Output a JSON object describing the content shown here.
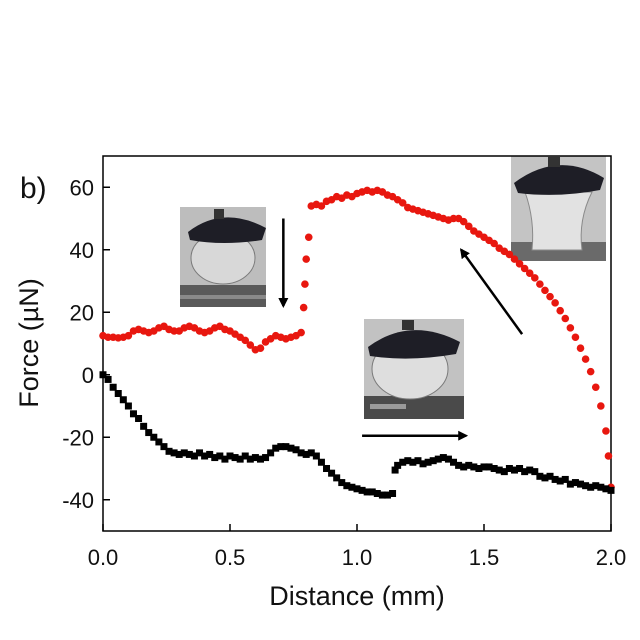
{
  "chart_data": {
    "type": "scatter",
    "panel_label": "b)",
    "xlabel": "Distance (mm)",
    "ylabel": "Force (µN)",
    "xlim": [
      0.0,
      2.0
    ],
    "ylim": [
      -50,
      70
    ],
    "x_ticks": [
      0.0,
      0.5,
      1.0,
      1.5,
      2.0
    ],
    "x_tick_labels": [
      "0.0",
      "0.5",
      "1.0",
      "1.5",
      "2.0"
    ],
    "y_ticks": [
      -40,
      -20,
      0,
      20,
      40,
      60
    ],
    "y_tick_labels": [
      "-40",
      "-20",
      "0",
      "20",
      "40",
      "60"
    ],
    "grid": false,
    "legend": "none",
    "series": [
      {
        "color": "#e8170f",
        "marker": "circle",
        "points": [
          [
            0.0,
            12.5
          ],
          [
            0.02,
            12.0
          ],
          [
            0.04,
            12.0
          ],
          [
            0.06,
            11.8
          ],
          [
            0.08,
            12.0
          ],
          [
            0.1,
            12.5
          ],
          [
            0.12,
            14.0
          ],
          [
            0.14,
            14.5
          ],
          [
            0.16,
            14.0
          ],
          [
            0.18,
            13.5
          ],
          [
            0.2,
            14.0
          ],
          [
            0.22,
            15.0
          ],
          [
            0.24,
            15.5
          ],
          [
            0.26,
            14.5
          ],
          [
            0.28,
            14.0
          ],
          [
            0.3,
            14.0
          ],
          [
            0.32,
            15.0
          ],
          [
            0.34,
            15.5
          ],
          [
            0.36,
            15.0
          ],
          [
            0.38,
            14.0
          ],
          [
            0.4,
            13.5
          ],
          [
            0.42,
            14.0
          ],
          [
            0.44,
            15.0
          ],
          [
            0.46,
            15.5
          ],
          [
            0.48,
            14.5
          ],
          [
            0.5,
            14.0
          ],
          [
            0.52,
            13.0
          ],
          [
            0.54,
            12.0
          ],
          [
            0.56,
            11.0
          ],
          [
            0.58,
            9.5
          ],
          [
            0.6,
            8.0
          ],
          [
            0.62,
            8.5
          ],
          [
            0.64,
            10.5
          ],
          [
            0.66,
            11.5
          ],
          [
            0.68,
            12.5
          ],
          [
            0.7,
            12.0
          ],
          [
            0.72,
            11.5
          ],
          [
            0.74,
            12.0
          ],
          [
            0.76,
            12.5
          ],
          [
            0.78,
            13.5
          ],
          [
            0.79,
            21.5
          ],
          [
            0.795,
            29.0
          ],
          [
            0.8,
            37.0
          ],
          [
            0.81,
            44.0
          ],
          [
            0.82,
            54.0
          ],
          [
            0.84,
            54.5
          ],
          [
            0.86,
            54.0
          ],
          [
            0.88,
            55.5
          ],
          [
            0.9,
            56.0
          ],
          [
            0.92,
            57.0
          ],
          [
            0.94,
            56.5
          ],
          [
            0.96,
            57.5
          ],
          [
            0.98,
            57.0
          ],
          [
            1.0,
            58.0
          ],
          [
            1.02,
            58.5
          ],
          [
            1.04,
            59.0
          ],
          [
            1.06,
            58.5
          ],
          [
            1.08,
            59.0
          ],
          [
            1.1,
            58.5
          ],
          [
            1.12,
            57.5
          ],
          [
            1.14,
            57.0
          ],
          [
            1.16,
            56.0
          ],
          [
            1.18,
            55.0
          ],
          [
            1.2,
            53.5
          ],
          [
            1.22,
            53.0
          ],
          [
            1.24,
            52.5
          ],
          [
            1.26,
            52.0
          ],
          [
            1.28,
            51.5
          ],
          [
            1.3,
            51.0
          ],
          [
            1.32,
            50.5
          ],
          [
            1.34,
            50.0
          ],
          [
            1.36,
            49.5
          ],
          [
            1.38,
            50.0
          ],
          [
            1.4,
            50.0
          ],
          [
            1.42,
            49.0
          ],
          [
            1.44,
            47.5
          ],
          [
            1.46,
            46.0
          ],
          [
            1.48,
            45.0
          ],
          [
            1.5,
            44.0
          ],
          [
            1.52,
            43.0
          ],
          [
            1.54,
            42.0
          ],
          [
            1.56,
            40.5
          ],
          [
            1.58,
            39.5
          ],
          [
            1.6,
            38.5
          ],
          [
            1.62,
            37.0
          ],
          [
            1.64,
            35.5
          ],
          [
            1.66,
            34.0
          ],
          [
            1.68,
            32.5
          ],
          [
            1.7,
            31.0
          ],
          [
            1.72,
            29.0
          ],
          [
            1.74,
            27.0
          ],
          [
            1.76,
            25.0
          ],
          [
            1.78,
            23.0
          ],
          [
            1.8,
            20.5
          ],
          [
            1.82,
            18.0
          ],
          [
            1.84,
            15.0
          ],
          [
            1.86,
            12.0
          ],
          [
            1.88,
            8.5
          ],
          [
            1.9,
            5.0
          ],
          [
            1.92,
            1.0
          ],
          [
            1.94,
            -4.0
          ],
          [
            1.96,
            -10.0
          ],
          [
            1.98,
            -18.0
          ],
          [
            1.99,
            -26.0
          ],
          [
            2.0,
            -36.0
          ]
        ]
      },
      {
        "color": "#000000",
        "marker": "square",
        "points": [
          [
            0.0,
            0.0
          ],
          [
            0.02,
            -1.5
          ],
          [
            0.04,
            -4.0
          ],
          [
            0.06,
            -6.0
          ],
          [
            0.08,
            -8.0
          ],
          [
            0.1,
            -10.0
          ],
          [
            0.12,
            -12.5
          ],
          [
            0.14,
            -14.0
          ],
          [
            0.16,
            -16.5
          ],
          [
            0.18,
            -18.5
          ],
          [
            0.2,
            -20.0
          ],
          [
            0.22,
            -21.5
          ],
          [
            0.24,
            -23.0
          ],
          [
            0.26,
            -24.5
          ],
          [
            0.28,
            -25.0
          ],
          [
            0.3,
            -25.5
          ],
          [
            0.32,
            -25.0
          ],
          [
            0.34,
            -25.5
          ],
          [
            0.36,
            -26.0
          ],
          [
            0.38,
            -25.0
          ],
          [
            0.4,
            -26.0
          ],
          [
            0.42,
            -25.5
          ],
          [
            0.44,
            -26.5
          ],
          [
            0.46,
            -26.0
          ],
          [
            0.48,
            -27.0
          ],
          [
            0.5,
            -26.0
          ],
          [
            0.52,
            -26.5
          ],
          [
            0.54,
            -27.0
          ],
          [
            0.56,
            -26.0
          ],
          [
            0.58,
            -27.0
          ],
          [
            0.6,
            -26.5
          ],
          [
            0.62,
            -27.0
          ],
          [
            0.64,
            -26.5
          ],
          [
            0.66,
            -25.0
          ],
          [
            0.68,
            -23.5
          ],
          [
            0.7,
            -23.0
          ],
          [
            0.72,
            -23.0
          ],
          [
            0.74,
            -23.5
          ],
          [
            0.76,
            -24.0
          ],
          [
            0.78,
            -25.0
          ],
          [
            0.8,
            -25.5
          ],
          [
            0.82,
            -25.0
          ],
          [
            0.84,
            -26.0
          ],
          [
            0.86,
            -28.0
          ],
          [
            0.88,
            -30.0
          ],
          [
            0.9,
            -31.5
          ],
          [
            0.92,
            -33.0
          ],
          [
            0.94,
            -34.5
          ],
          [
            0.96,
            -35.5
          ],
          [
            0.98,
            -36.0
          ],
          [
            1.0,
            -36.5
          ],
          [
            1.02,
            -37.0
          ],
          [
            1.04,
            -37.5
          ],
          [
            1.06,
            -37.5
          ],
          [
            1.08,
            -38.0
          ],
          [
            1.1,
            -38.5
          ],
          [
            1.12,
            -38.5
          ],
          [
            1.14,
            -38.0
          ],
          [
            1.15,
            -30.5
          ],
          [
            1.16,
            -29.0
          ],
          [
            1.18,
            -28.0
          ],
          [
            1.2,
            -27.5
          ],
          [
            1.22,
            -28.0
          ],
          [
            1.24,
            -27.5
          ],
          [
            1.26,
            -28.5
          ],
          [
            1.28,
            -28.0
          ],
          [
            1.3,
            -27.5
          ],
          [
            1.32,
            -27.0
          ],
          [
            1.34,
            -26.5
          ],
          [
            1.36,
            -27.0
          ],
          [
            1.38,
            -28.0
          ],
          [
            1.4,
            -29.0
          ],
          [
            1.42,
            -29.5
          ],
          [
            1.44,
            -29.0
          ],
          [
            1.46,
            -29.5
          ],
          [
            1.48,
            -30.0
          ],
          [
            1.5,
            -29.5
          ],
          [
            1.52,
            -29.5
          ],
          [
            1.54,
            -30.0
          ],
          [
            1.56,
            -30.5
          ],
          [
            1.58,
            -31.0
          ],
          [
            1.6,
            -30.0
          ],
          [
            1.62,
            -30.5
          ],
          [
            1.64,
            -30.0
          ],
          [
            1.66,
            -31.0
          ],
          [
            1.68,
            -30.5
          ],
          [
            1.7,
            -31.0
          ],
          [
            1.72,
            -32.5
          ],
          [
            1.74,
            -33.0
          ],
          [
            1.76,
            -32.5
          ],
          [
            1.78,
            -33.5
          ],
          [
            1.8,
            -34.0
          ],
          [
            1.82,
            -33.5
          ],
          [
            1.84,
            -35.0
          ],
          [
            1.86,
            -34.5
          ],
          [
            1.88,
            -35.0
          ],
          [
            1.9,
            -35.5
          ],
          [
            1.92,
            -36.0
          ],
          [
            1.94,
            -35.5
          ],
          [
            1.96,
            -36.0
          ],
          [
            1.98,
            -36.5
          ],
          [
            2.0,
            -37.0
          ]
        ]
      }
    ],
    "annotations": [
      {
        "type": "arrow",
        "direction": "down",
        "from": [
          0.71,
          50
        ],
        "to": [
          0.71,
          22
        ]
      },
      {
        "type": "arrow",
        "direction": "right",
        "from": [
          1.02,
          -19.5
        ],
        "to": [
          1.43,
          -19.5
        ]
      },
      {
        "type": "arrow",
        "direction": "up-left",
        "from": [
          1.65,
          13
        ],
        "to": [
          1.41,
          40
        ]
      }
    ],
    "insets": [
      {
        "name": "inset-droplet-approach",
        "description": "photo of droplet under a dark plate, approaching"
      },
      {
        "name": "inset-droplet-retract",
        "description": "photo of droplet under a dark plate, retracting"
      },
      {
        "name": "inset-liquid-bridge",
        "description": "photo of stretched liquid bridge"
      }
    ]
  }
}
